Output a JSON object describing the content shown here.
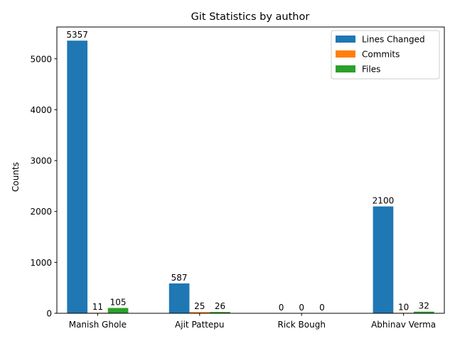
{
  "chart_data": {
    "type": "bar",
    "title": "Git Statistics by author",
    "xlabel": "",
    "ylabel": "Counts",
    "categories": [
      "Manish Ghole",
      "Ajit Pattepu",
      "Rick Bough",
      "Abhinav Verma"
    ],
    "series": [
      {
        "name": "Lines Changed",
        "values": [
          5357,
          587,
          0,
          2100
        ],
        "color": "#1f77b4"
      },
      {
        "name": "Commits",
        "values": [
          11,
          25,
          0,
          10
        ],
        "color": "#ff7f0e"
      },
      {
        "name": "Files",
        "values": [
          105,
          26,
          0,
          32
        ],
        "color": "#2ca02c"
      }
    ],
    "ylim": [
      0,
      5625
    ],
    "yticks": [
      0,
      1000,
      2000,
      3000,
      4000,
      5000
    ],
    "legend_position": "top-right",
    "grid": false,
    "data_labels": true
  }
}
